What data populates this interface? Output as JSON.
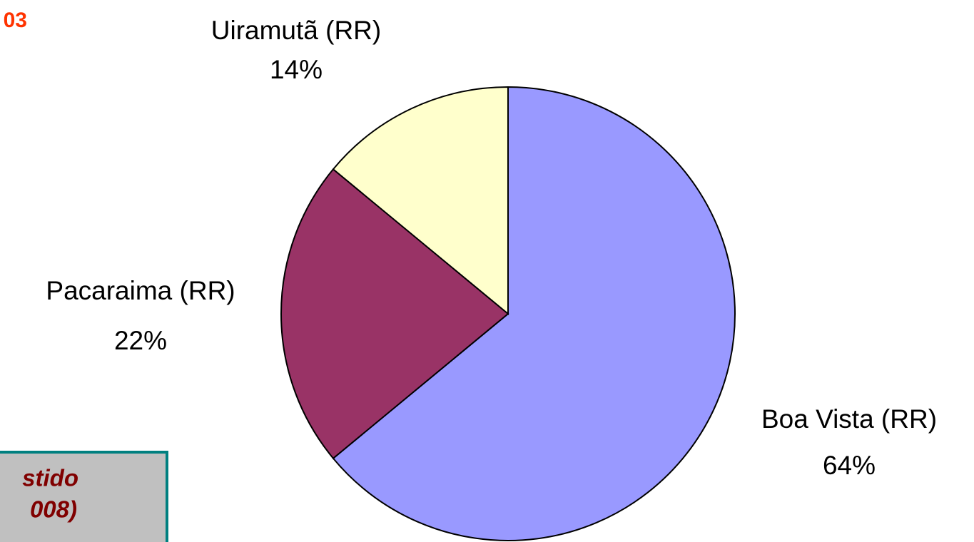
{
  "chart_data": {
    "type": "pie",
    "categories": [
      "Boa Vista (RR)",
      "Pacaraima (RR)",
      "Uiramutã (RR)"
    ],
    "values": [
      64,
      22,
      14
    ],
    "value_labels": [
      "64%",
      "22%",
      "14%"
    ],
    "colors": [
      "#9999ff",
      "#993366",
      "#ffffcc"
    ],
    "annotations": [
      "03",
      "stido",
      "008)"
    ]
  }
}
